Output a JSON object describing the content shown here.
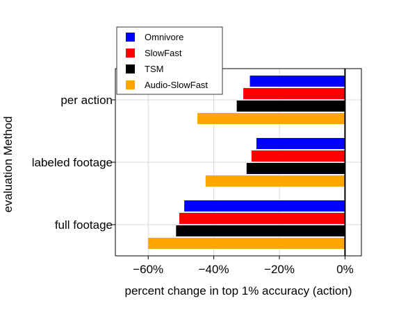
{
  "chart_data": {
    "type": "bar",
    "orientation": "horizontal",
    "categories": [
      "full footage",
      "labeled footage",
      "per action"
    ],
    "series": [
      {
        "name": "Omnivore",
        "color": "#0000ff",
        "values": [
          -49,
          -27,
          -29
        ]
      },
      {
        "name": "SlowFast",
        "color": "#ff0000",
        "values": [
          -50.5,
          -28.5,
          -31
        ]
      },
      {
        "name": "TSM",
        "color": "#000000",
        "values": [
          -51.5,
          -30,
          -33
        ]
      },
      {
        "name": "Audio-SlowFast",
        "color": "#ffa500",
        "values": [
          -60,
          -42.5,
          -45
        ]
      }
    ],
    "xlabel": "percent change in top 1% accuracy (action)",
    "ylabel": "evaluation Method",
    "xlim": [
      -70,
      5
    ],
    "xticks": [
      -60,
      -40,
      -20,
      0
    ],
    "xtick_labels": [
      "−60%",
      "−40%",
      "−20%",
      "0%"
    ],
    "grid": true,
    "legend": "top-left, outside plot"
  }
}
